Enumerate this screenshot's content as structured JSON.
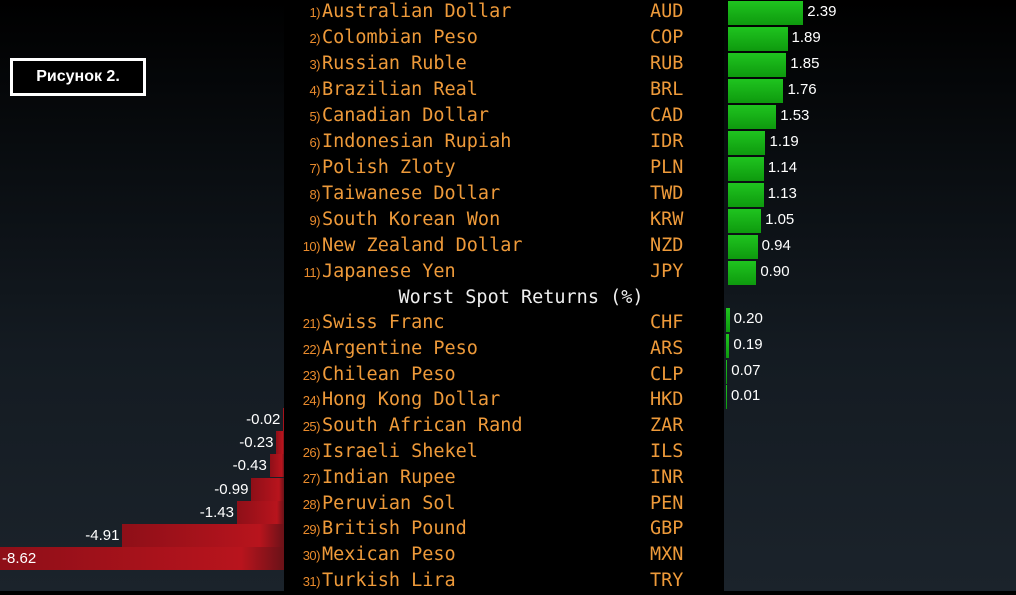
{
  "figure_label": "Рисунок 2.",
  "section_title": "Worst Spot Returns (%)",
  "chart_data": {
    "type": "bar",
    "best": [
      {
        "rank": "1)",
        "name": "Australian Dollar",
        "code": "AUD",
        "value": 2.39,
        "label": "2.39"
      },
      {
        "rank": "2)",
        "name": "Colombian Peso",
        "code": "COP",
        "value": 1.89,
        "label": "1.89"
      },
      {
        "rank": "3)",
        "name": "Russian Ruble",
        "code": "RUB",
        "value": 1.85,
        "label": "1.85"
      },
      {
        "rank": "4)",
        "name": "Brazilian Real",
        "code": "BRL",
        "value": 1.76,
        "label": "1.76"
      },
      {
        "rank": "5)",
        "name": "Canadian Dollar",
        "code": "CAD",
        "value": 1.53,
        "label": "1.53"
      },
      {
        "rank": "6)",
        "name": "Indonesian Rupiah",
        "code": "IDR",
        "value": 1.19,
        "label": "1.19"
      },
      {
        "rank": "7)",
        "name": "Polish Zloty",
        "code": "PLN",
        "value": 1.14,
        "label": "1.14"
      },
      {
        "rank": "8)",
        "name": "Taiwanese Dollar",
        "code": "TWD",
        "value": 1.13,
        "label": "1.13"
      },
      {
        "rank": "9)",
        "name": "South Korean Won",
        "code": "KRW",
        "value": 1.05,
        "label": "1.05"
      },
      {
        "rank": "10)",
        "name": "New Zealand Dollar",
        "code": "NZD",
        "value": 0.94,
        "label": "0.94"
      },
      {
        "rank": "11)",
        "name": "Japanese Yen",
        "code": "JPY",
        "value": 0.9,
        "label": "0.90"
      }
    ],
    "worst": [
      {
        "rank": "21)",
        "name": "Swiss Franc",
        "code": "CHF",
        "value": 0.2,
        "label": "0.20"
      },
      {
        "rank": "22)",
        "name": "Argentine Peso",
        "code": "ARS",
        "value": 0.19,
        "label": "0.19"
      },
      {
        "rank": "23)",
        "name": "Chilean Peso",
        "code": "CLP",
        "value": 0.07,
        "label": "0.07"
      },
      {
        "rank": "24)",
        "name": "Hong Kong Dollar",
        "code": "HKD",
        "value": 0.01,
        "label": "0.01"
      },
      {
        "rank": "25)",
        "name": "South African Rand",
        "code": "ZAR",
        "value": -0.02,
        "label": "-0.02"
      },
      {
        "rank": "26)",
        "name": "Israeli Shekel",
        "code": "ILS",
        "value": -0.23,
        "label": "-0.23"
      },
      {
        "rank": "27)",
        "name": "Indian Rupee",
        "code": "INR",
        "value": -0.43,
        "label": "-0.43"
      },
      {
        "rank": "28)",
        "name": "Peruvian Sol",
        "code": "PEN",
        "value": -0.99,
        "label": "-0.99"
      },
      {
        "rank": "29)",
        "name": "British Pound",
        "code": "GBP",
        "value": -1.43,
        "label": "-1.43"
      },
      {
        "rank": "30)",
        "name": "Mexican Peso",
        "code": "MXN",
        "value": -4.91,
        "label": "-4.91"
      },
      {
        "rank": "31)",
        "name": "Turkish Lira",
        "code": "TRY",
        "value": -8.62,
        "label": "-8.62"
      }
    ],
    "colors": {
      "positive": "#14b414",
      "negative": "#b01420",
      "text_orange": "#ee9a3a"
    }
  }
}
